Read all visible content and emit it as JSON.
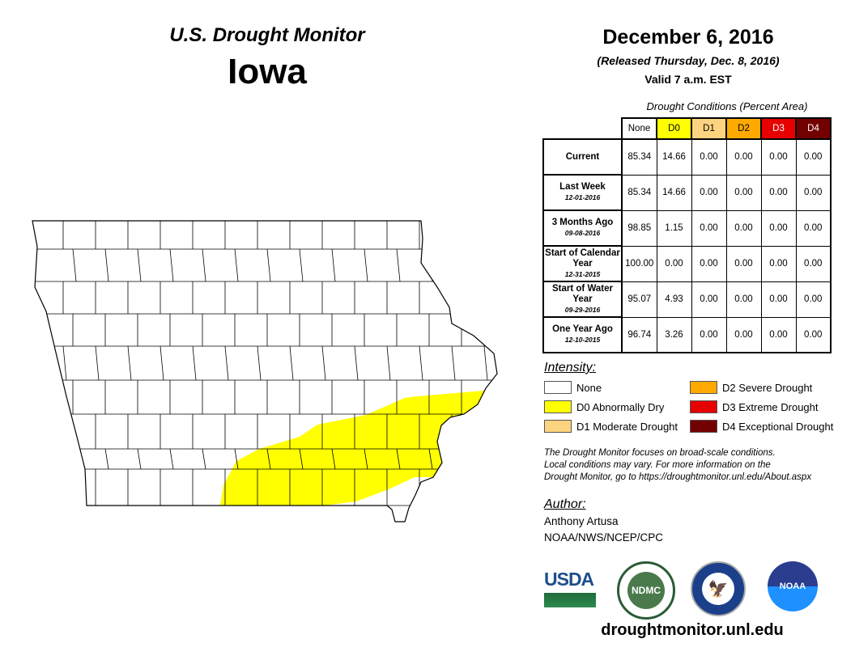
{
  "title": "U.S. Drought Monitor",
  "state": "Iowa",
  "date": "December 6, 2016",
  "released": "(Released Thursday, Dec. 8, 2016)",
  "valid": "Valid 7 a.m. EST",
  "table": {
    "caption": "Drought Conditions (Percent Area)",
    "headers": [
      "None",
      "D0",
      "D1",
      "D2",
      "D3",
      "D4"
    ],
    "header_colors": [
      "#ffffff",
      "#ffff00",
      "#fcd37f",
      "#ffaa00",
      "#e60000",
      "#730000"
    ],
    "rows": [
      {
        "label": "Current",
        "date": "",
        "values": [
          "85.34",
          "14.66",
          "0.00",
          "0.00",
          "0.00",
          "0.00"
        ]
      },
      {
        "label": "Last Week",
        "date": "12-01-2016",
        "values": [
          "85.34",
          "14.66",
          "0.00",
          "0.00",
          "0.00",
          "0.00"
        ]
      },
      {
        "label": "3 Months Ago",
        "date": "09-08-2016",
        "values": [
          "98.85",
          "1.15",
          "0.00",
          "0.00",
          "0.00",
          "0.00"
        ]
      },
      {
        "label": "Start of Calendar Year",
        "date": "12-31-2015",
        "values": [
          "100.00",
          "0.00",
          "0.00",
          "0.00",
          "0.00",
          "0.00"
        ]
      },
      {
        "label": "Start of Water Year",
        "date": "09-29-2016",
        "values": [
          "95.07",
          "4.93",
          "0.00",
          "0.00",
          "0.00",
          "0.00"
        ]
      },
      {
        "label": "One Year Ago",
        "date": "12-10-2015",
        "values": [
          "96.74",
          "3.26",
          "0.00",
          "0.00",
          "0.00",
          "0.00"
        ]
      }
    ]
  },
  "legend": {
    "title": "Intensity:",
    "items": [
      {
        "label": "None",
        "color": "#ffffff"
      },
      {
        "label": "D0 Abnormally Dry",
        "color": "#ffff00"
      },
      {
        "label": "D1 Moderate Drought",
        "color": "#fcd37f"
      },
      {
        "label": "D2 Severe Drought",
        "color": "#ffaa00"
      },
      {
        "label": "D3 Extreme Drought",
        "color": "#e60000"
      },
      {
        "label": "D4 Exceptional Drought",
        "color": "#730000"
      }
    ]
  },
  "note": [
    "The Drought Monitor focuses on broad-scale conditions.",
    "Local conditions may vary. For more information on the",
    "Drought Monitor, go to https://droughtmonitor.unl.edu/About.aspx"
  ],
  "author": {
    "title": "Author:",
    "name": "Anthony Artusa",
    "org": "NOAA/NWS/NCEP/CPC"
  },
  "logos": {
    "usda": "USDA",
    "ndmc": "NDMC",
    "noaa": "NOAA"
  },
  "url": "droughtmonitor.unl.edu"
}
